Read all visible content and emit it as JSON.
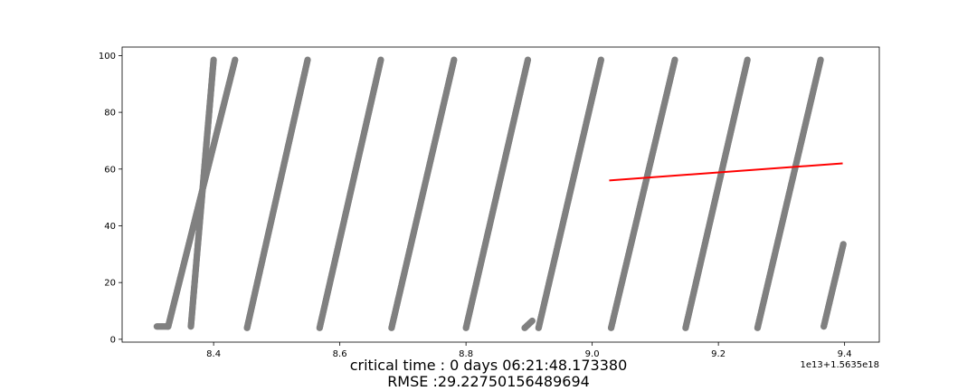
{
  "chart_data": {
    "type": "scatter",
    "title": "",
    "xlabel": "",
    "ylabel": "",
    "x_offset_label": "1e13+1.5635e18",
    "xlim": [
      8.255,
      9.455
    ],
    "ylim": [
      -1,
      103
    ],
    "xticks": [
      8.4,
      8.6,
      8.8,
      9.0,
      9.2,
      9.4
    ],
    "xtick_labels": [
      "8.4",
      "8.6",
      "8.8",
      "9.0",
      "9.2",
      "9.4"
    ],
    "yticks": [
      0,
      20,
      40,
      60,
      80,
      100
    ],
    "ytick_labels": [
      "0",
      "20",
      "40",
      "60",
      "80",
      "100"
    ],
    "grid": false,
    "series": [
      {
        "kind": "points",
        "color": "#808080",
        "segments": [
          {
            "x": [
              8.31,
              8.328,
              8.434
            ],
            "y": [
              4.5,
              4.5,
              98.5
            ]
          },
          {
            "x": [
              8.364,
              8.4
            ],
            "y": [
              4.5,
              98.5
            ]
          },
          {
            "x": [
              8.453,
              8.549
            ],
            "y": [
              4,
              98.5
            ]
          },
          {
            "x": [
              8.568,
              8.665
            ],
            "y": [
              4,
              98.5
            ]
          },
          {
            "x": [
              8.682,
              8.781
            ],
            "y": [
              4,
              98.5
            ]
          },
          {
            "x": [
              8.8,
              8.898
            ],
            "y": [
              4,
              98.5
            ]
          },
          {
            "x": [
              8.893,
              8.905
            ],
            "y": [
              4,
              6.5
            ]
          },
          {
            "x": [
              8.915,
              9.014
            ],
            "y": [
              4,
              98.5
            ]
          },
          {
            "x": [
              9.03,
              9.131
            ],
            "y": [
              4,
              98.5
            ]
          },
          {
            "x": [
              9.148,
              9.246
            ],
            "y": [
              4,
              98.5
            ]
          },
          {
            "x": [
              9.262,
              9.362
            ],
            "y": [
              4,
              98.5
            ]
          },
          {
            "x": [
              9.367,
              9.398
            ],
            "y": [
              4.5,
              33.5
            ]
          }
        ]
      },
      {
        "kind": "line",
        "color": "#ff0000",
        "x": [
          9.027,
          9.397
        ],
        "y": [
          56,
          62
        ]
      }
    ]
  },
  "caption": {
    "line1": "critical time : 0 days 06:21:48.173380",
    "line2": "RMSE :29.22750156489694"
  }
}
